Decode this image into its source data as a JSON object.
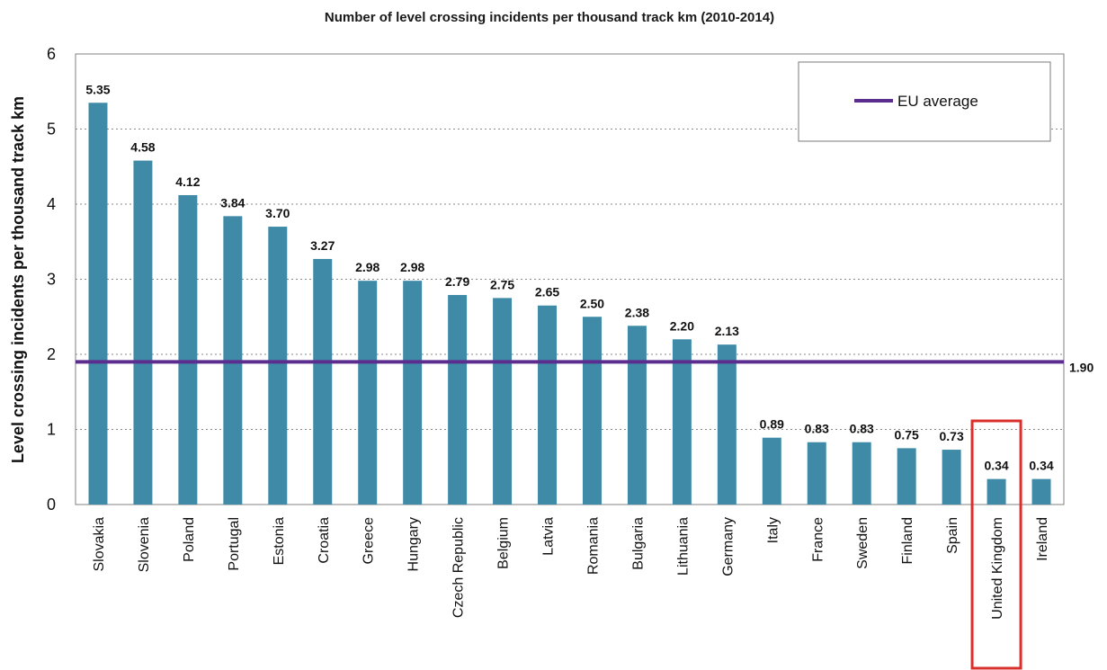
{
  "chart_data": {
    "type": "bar",
    "title": "Number of level crossing incidents per thousand track km (2010-2014)",
    "xlabel": "",
    "ylabel": "Level crossing incidents per thousand track km",
    "ylim": [
      0,
      6
    ],
    "yticks": [
      "0",
      "1",
      "2",
      "3",
      "4",
      "5",
      "6"
    ],
    "grid": "horizontal-dotted",
    "categories": [
      "Slovakia",
      "Slovenia",
      "Poland",
      "Portugal",
      "Estonia",
      "Croatia",
      "Greece",
      "Hungary",
      "Czech Republic",
      "Belgium",
      "Latvia",
      "Romania",
      "Bulgaria",
      "Lithuania",
      "Germany",
      "Italy",
      "France",
      "Sweden",
      "Finland",
      "Spain",
      "United Kingdom",
      "Ireland"
    ],
    "values": [
      5.35,
      4.58,
      4.12,
      3.84,
      3.7,
      3.27,
      2.98,
      2.98,
      2.79,
      2.75,
      2.65,
      2.5,
      2.38,
      2.2,
      2.13,
      0.89,
      0.83,
      0.83,
      0.75,
      0.73,
      0.34,
      0.34
    ],
    "value_labels": [
      "5.35",
      "4.58",
      "4.12",
      "3.84",
      "3.70",
      "3.27",
      "2.98",
      "2.98",
      "2.79",
      "2.75",
      "2.65",
      "2.50",
      "2.38",
      "2.20",
      "2.13",
      "0.89",
      "0.83",
      "0.83",
      "0.75",
      "0.73",
      "0.34",
      "0.34"
    ],
    "reference_line": {
      "name": "EU average",
      "value": 1.9,
      "label": "1.90",
      "color": "#5b2d8e"
    },
    "legend": {
      "position": "top-right",
      "entries": [
        "EU average"
      ]
    },
    "highlight": {
      "category": "United Kingdom",
      "color": "#d9302c"
    },
    "colors": {
      "bar": "#3f8ba7",
      "axis": "#808080",
      "grid": "#8a8a8a"
    }
  }
}
